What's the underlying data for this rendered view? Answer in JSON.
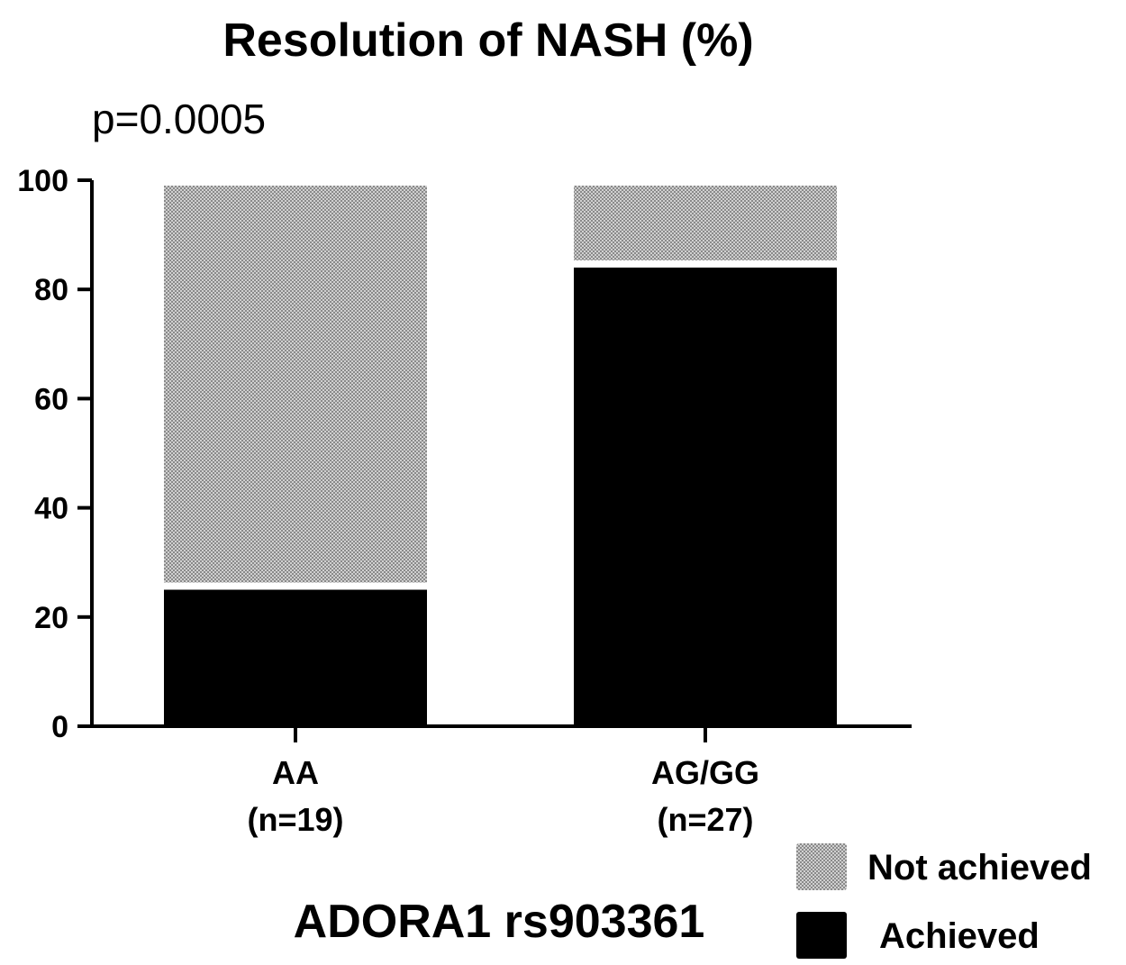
{
  "chart_data": {
    "type": "bar",
    "stacked": true,
    "title": "Resolution of NASH (%)",
    "annotation": "p=0.0005",
    "xlabel": "ADORA1 rs903361",
    "ylabel": "",
    "ylim": [
      0,
      100
    ],
    "yticks": [
      0,
      20,
      40,
      60,
      80,
      100
    ],
    "categories": [
      {
        "name": "AA",
        "n": "(n=19)"
      },
      {
        "name": "AG/GG",
        "n": "(n=27)"
      }
    ],
    "series": [
      {
        "name": "Achieved",
        "values": [
          25,
          84
        ],
        "color": "#000000"
      },
      {
        "name": "Not achieved",
        "values": [
          75,
          16
        ],
        "color": "#b4b4b4"
      }
    ],
    "legend_position": "bottom-right",
    "grid": false
  }
}
